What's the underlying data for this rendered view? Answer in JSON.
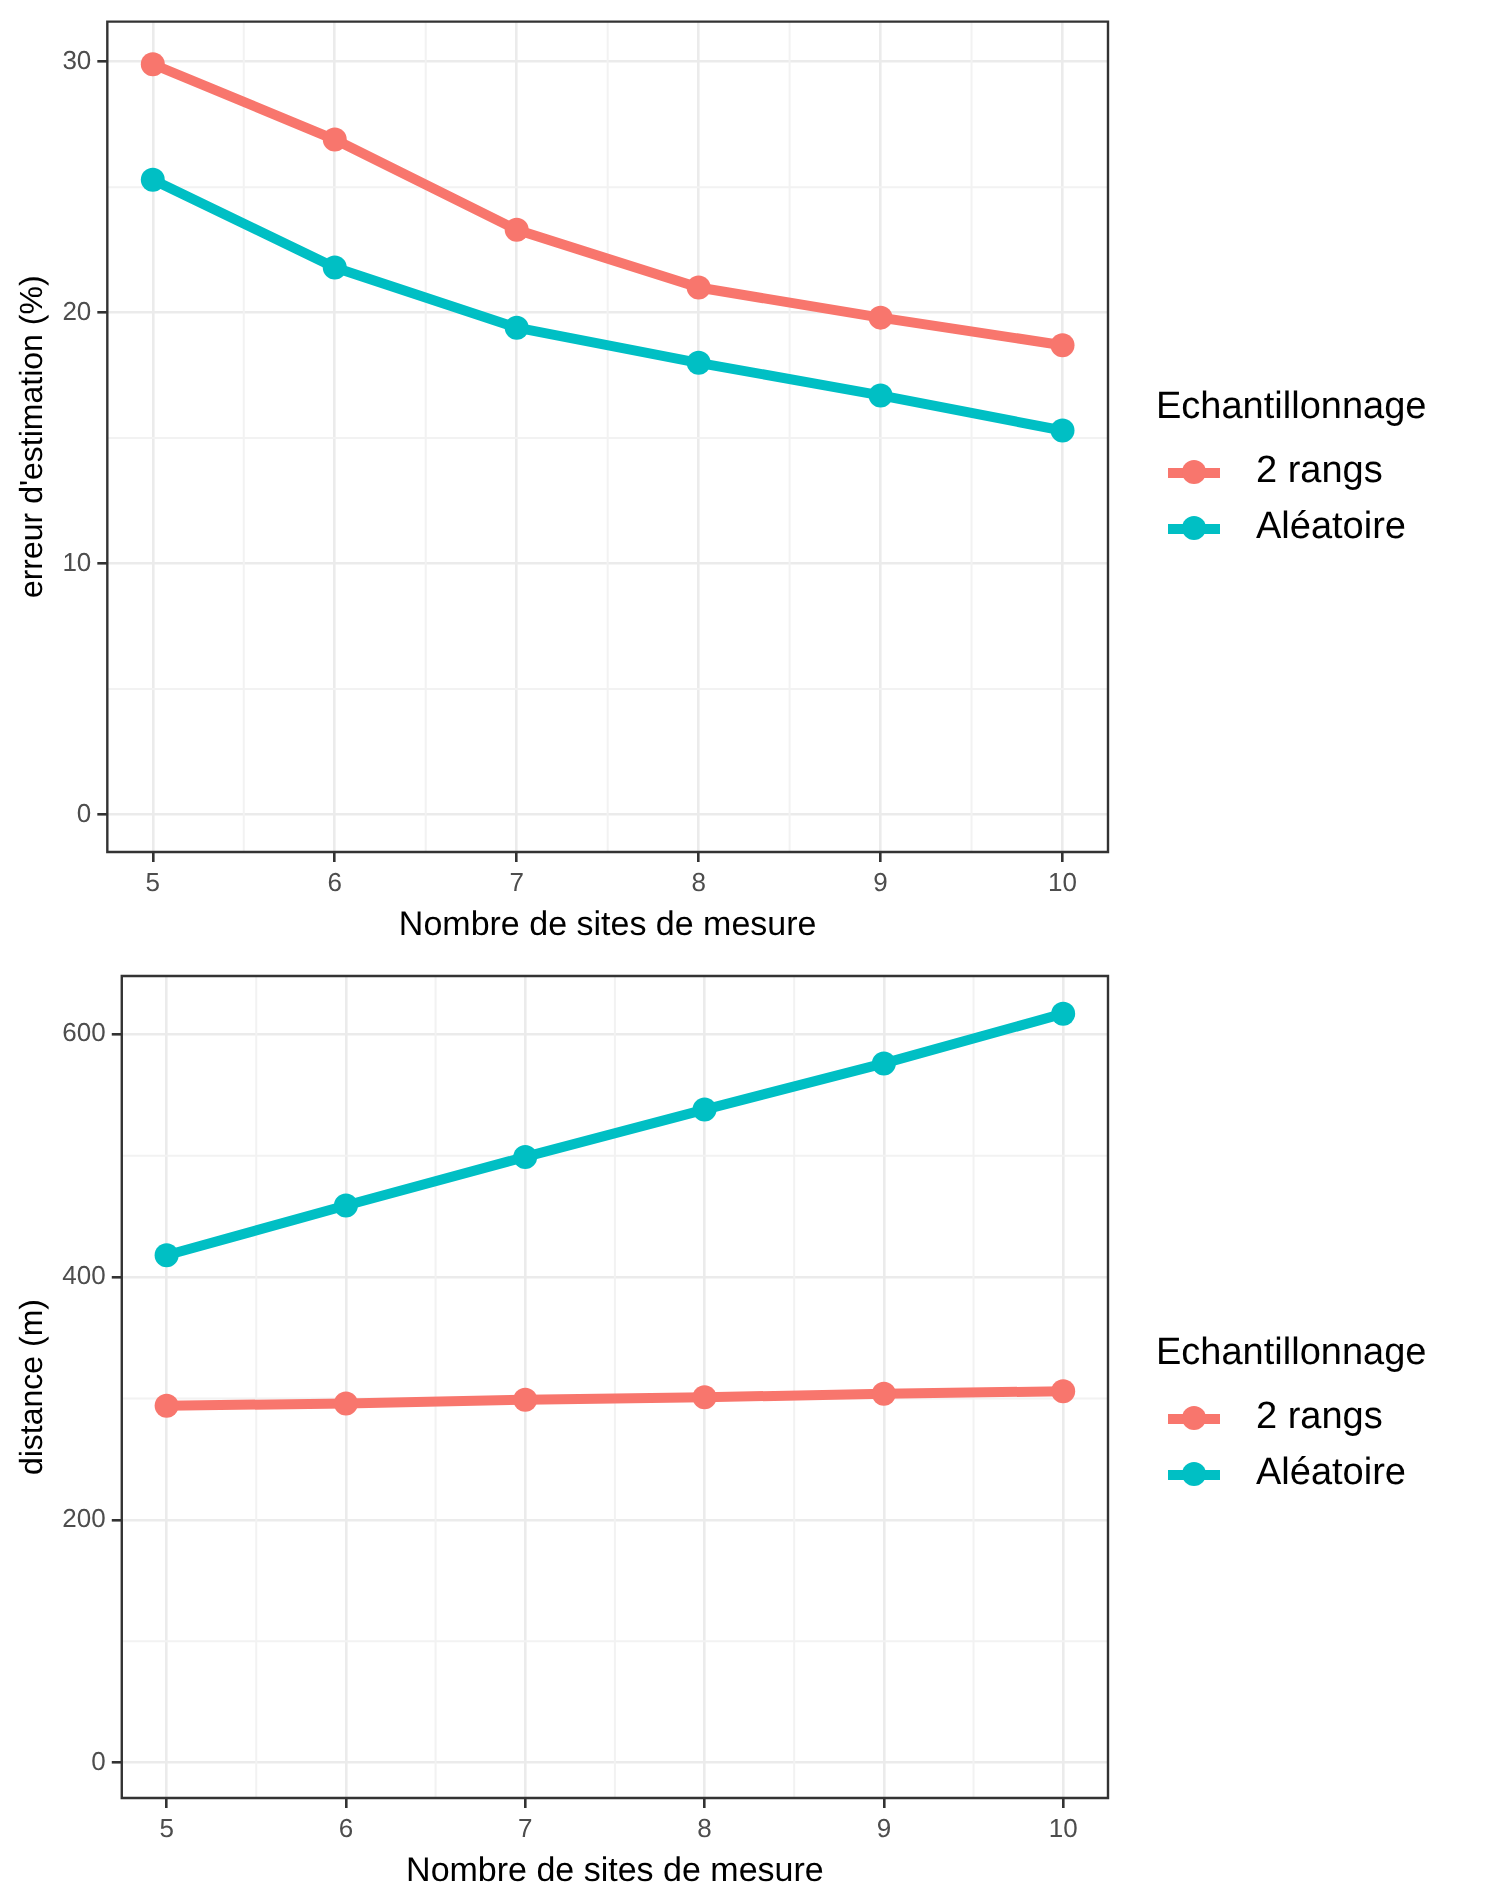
{
  "chart_data": [
    {
      "type": "line",
      "xlabel": "Nombre de sites de mesure",
      "ylabel": "erreur d'estimation (%)",
      "legend_title": "Echantillonnage",
      "legend": "right",
      "grid": true,
      "marker": "circle",
      "line_style": "solid",
      "x": [
        5,
        6,
        7,
        8,
        9,
        10
      ],
      "xlim": [
        4.75,
        10.25
      ],
      "xticks": [
        5,
        6,
        7,
        8,
        9,
        10
      ],
      "ylim": [
        -1.5,
        31.6
      ],
      "yticks": [
        0,
        10,
        20,
        30
      ],
      "series": [
        {
          "name": "2 rangs",
          "color": "#f8766d",
          "values": [
            29.9,
            26.9,
            23.3,
            21.0,
            19.8,
            18.7
          ]
        },
        {
          "name": "Aléatoire",
          "color": "#00bfc4",
          "values": [
            25.3,
            21.8,
            19.4,
            18.0,
            16.7,
            15.3
          ]
        }
      ]
    },
    {
      "type": "line",
      "xlabel": "Nombre de sites de mesure",
      "ylabel": "distance (m)",
      "legend_title": "Echantillonnage",
      "legend": "right",
      "grid": true,
      "marker": "circle",
      "line_style": "solid",
      "x": [
        5,
        6,
        7,
        8,
        9,
        10
      ],
      "xlim": [
        4.75,
        10.25
      ],
      "xticks": [
        5,
        6,
        7,
        8,
        9,
        10
      ],
      "ylim": [
        -29,
        648
      ],
      "yticks": [
        0,
        200,
        400,
        600
      ],
      "series": [
        {
          "name": "2 rangs",
          "color": "#f8766d",
          "values": [
            294,
            296,
            299,
            301,
            304,
            306
          ]
        },
        {
          "name": "Aléatoire",
          "color": "#00bfc4",
          "values": [
            418,
            459,
            499,
            538,
            576,
            617
          ]
        }
      ]
    }
  ]
}
